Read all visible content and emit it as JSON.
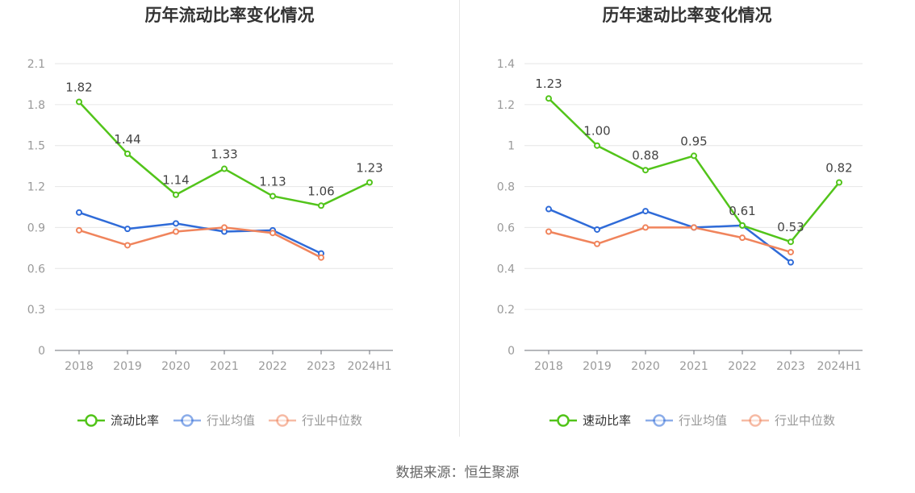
{
  "source_note": "数据来源：恒生聚源",
  "chart_data": [
    {
      "type": "line",
      "title": "历年流动比率变化情况",
      "categories": [
        "2018",
        "2019",
        "2020",
        "2021",
        "2022",
        "2023",
        "2024H1"
      ],
      "ylim": [
        0,
        2.1
      ],
      "yticks": [
        "0",
        "0.3",
        "0.6",
        "0.9",
        "1.2",
        "1.5",
        "1.8",
        "2.1"
      ],
      "grid": true,
      "legend_position": "bottom",
      "series": [
        {
          "name": "流动比率",
          "color": "#52c41a",
          "values": [
            1.82,
            1.44,
            1.14,
            1.33,
            1.13,
            1.06,
            1.23
          ],
          "labels": [
            "1.82",
            "1.44",
            "1.14",
            "1.33",
            "1.13",
            "1.06",
            "1.23"
          ]
        },
        {
          "name": "行业均值",
          "color": "#2f6bd8",
          "values": [
            1.01,
            0.89,
            0.93,
            0.87,
            0.88,
            0.71,
            null
          ]
        },
        {
          "name": "行业中位数",
          "color": "#f0845c",
          "values": [
            0.88,
            0.77,
            0.87,
            0.9,
            0.86,
            0.68,
            null
          ]
        }
      ]
    },
    {
      "type": "line",
      "title": "历年速动比率变化情况",
      "categories": [
        "2018",
        "2019",
        "2020",
        "2021",
        "2022",
        "2023",
        "2024H1"
      ],
      "ylim": [
        0,
        1.4
      ],
      "yticks": [
        "0",
        "0.2",
        "0.4",
        "0.6",
        "0.8",
        "1",
        "1.2",
        "1.4"
      ],
      "grid": true,
      "legend_position": "bottom",
      "series": [
        {
          "name": "速动比率",
          "color": "#52c41a",
          "values": [
            1.23,
            1.0,
            0.88,
            0.95,
            0.61,
            0.53,
            0.82
          ],
          "labels": [
            "1.23",
            "1.00",
            "0.88",
            "0.95",
            "0.61",
            "0.53",
            "0.82"
          ]
        },
        {
          "name": "行业均值",
          "color": "#2f6bd8",
          "values": [
            0.69,
            0.59,
            0.68,
            0.6,
            0.61,
            0.43,
            null
          ]
        },
        {
          "name": "行业中位数",
          "color": "#f0845c",
          "values": [
            0.58,
            0.52,
            0.6,
            0.6,
            0.55,
            0.48,
            null
          ]
        }
      ]
    }
  ]
}
